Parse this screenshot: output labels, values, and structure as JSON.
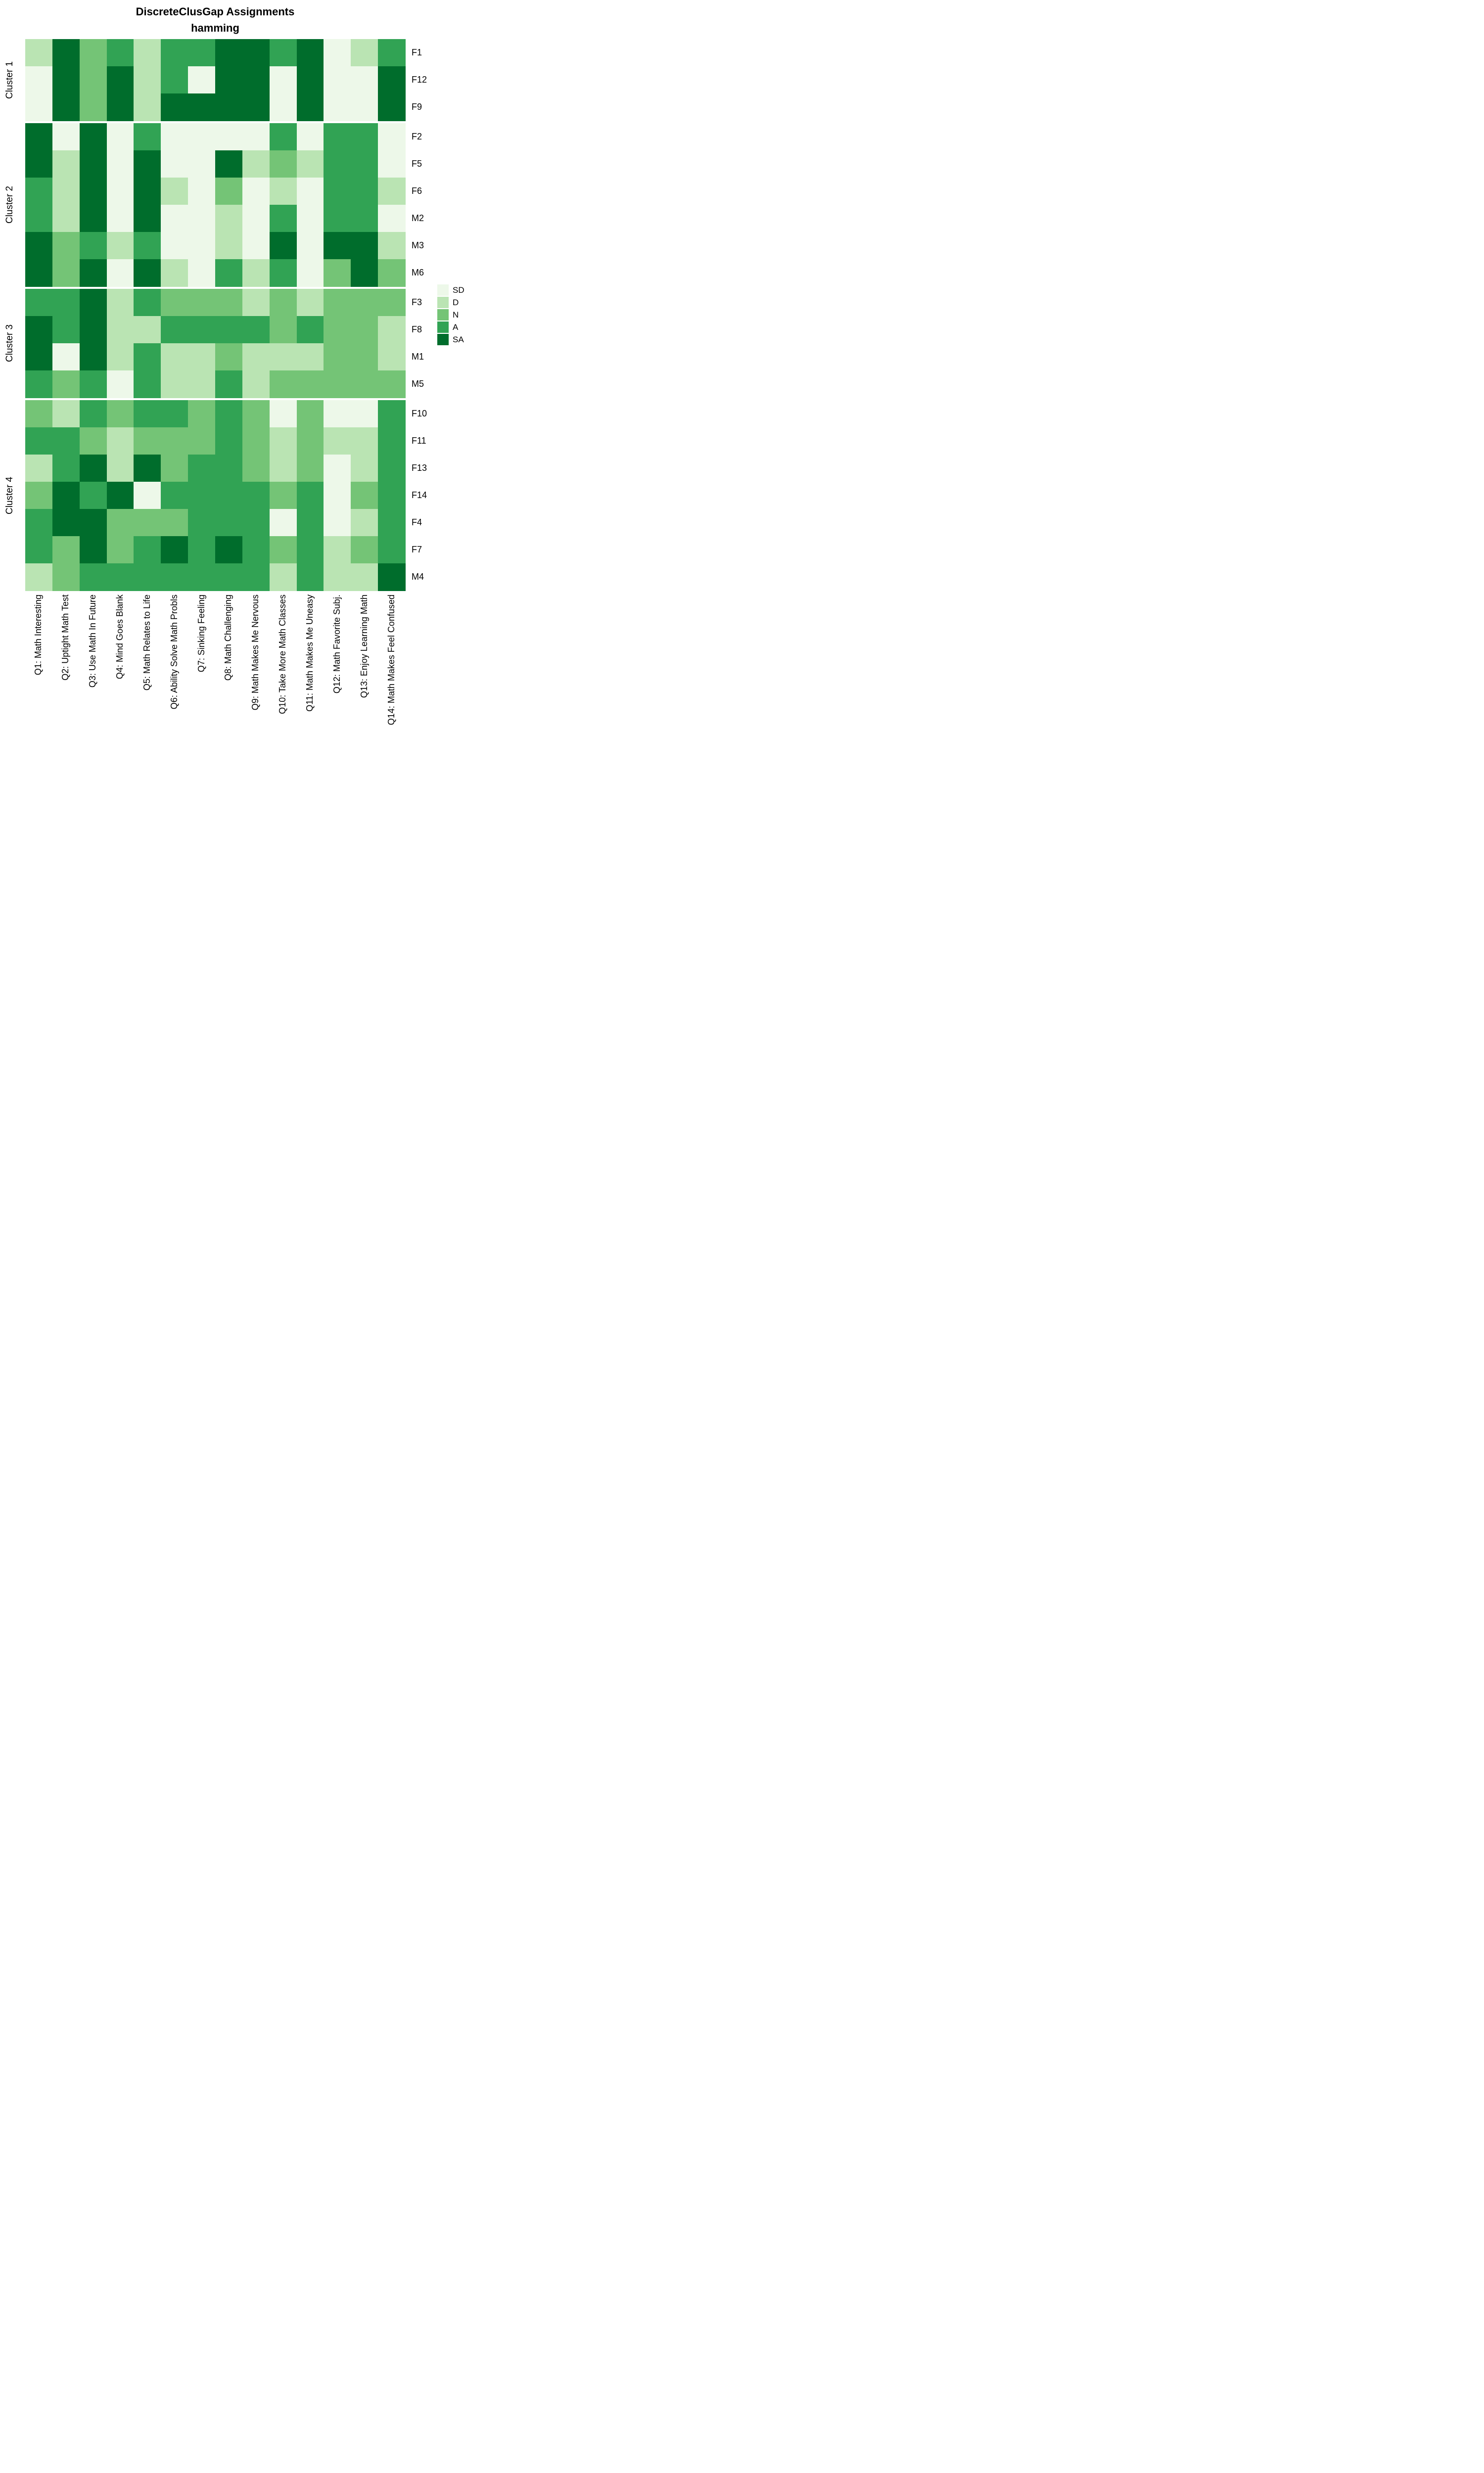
{
  "title": "DiscreteClusGap Assignments",
  "subtitle": "hamming",
  "chart_data": {
    "type": "heatmap",
    "background": "#ffffff",
    "columns": [
      "Q1: Math Interesting",
      "Q2: Uptight Math Test",
      "Q3: Use Math In Future",
      "Q4: Mind Goes Blank",
      "Q5: Math Relates to Life",
      "Q6: Ability Solve Math Probls",
      "Q7: Sinking Feeling",
      "Q8: Math Challenging",
      "Q9: Math Makes Me Nervous",
      "Q10: Take More Math Classes",
      "Q11: Math Makes Me Uneasy",
      "Q12: Math Favorite Subj.",
      "Q13: Enjoy Learning Math",
      "Q14: Math Makes Feel Confused"
    ],
    "legend": {
      "position": "right",
      "entries": [
        {
          "label": "SD",
          "color": "#EDF8E9"
        },
        {
          "label": "D",
          "color": "#BAE4B3"
        },
        {
          "label": "N",
          "color": "#74C476"
        },
        {
          "label": "A",
          "color": "#31A354"
        },
        {
          "label": "SA",
          "color": "#006D2C"
        }
      ]
    },
    "clusters": [
      {
        "name": "Cluster 1",
        "rows": [
          {
            "id": "F1",
            "values": [
              "D",
              "SA",
              "N",
              "A",
              "D",
              "A",
              "A",
              "SA",
              "SA",
              "A",
              "SA",
              "SD",
              "D",
              "A"
            ]
          },
          {
            "id": "F12",
            "values": [
              "SD",
              "SA",
              "N",
              "SA",
              "D",
              "A",
              "SD",
              "SA",
              "SA",
              "SD",
              "SA",
              "SD",
              "SD",
              "SA"
            ]
          },
          {
            "id": "F9",
            "values": [
              "SD",
              "SA",
              "N",
              "SA",
              "D",
              "SA",
              "SA",
              "SA",
              "SA",
              "SD",
              "SA",
              "SD",
              "SD",
              "SA"
            ]
          }
        ]
      },
      {
        "name": "Cluster 2",
        "rows": [
          {
            "id": "F2",
            "values": [
              "SA",
              "SD",
              "SA",
              "SD",
              "A",
              "SD",
              "SD",
              "SD",
              "SD",
              "A",
              "SD",
              "A",
              "A",
              "SD"
            ]
          },
          {
            "id": "F5",
            "values": [
              "SA",
              "D",
              "SA",
              "SD",
              "SA",
              "SD",
              "SD",
              "SA",
              "D",
              "N",
              "D",
              "A",
              "A",
              "SD"
            ]
          },
          {
            "id": "F6",
            "values": [
              "A",
              "D",
              "SA",
              "SD",
              "SA",
              "D",
              "SD",
              "N",
              "SD",
              "D",
              "SD",
              "A",
              "A",
              "D"
            ]
          },
          {
            "id": "M2",
            "values": [
              "A",
              "D",
              "SA",
              "SD",
              "SA",
              "SD",
              "SD",
              "D",
              "SD",
              "A",
              "SD",
              "A",
              "A",
              "SD"
            ]
          },
          {
            "id": "M3",
            "values": [
              "SA",
              "N",
              "A",
              "D",
              "A",
              "SD",
              "SD",
              "D",
              "SD",
              "SA",
              "SD",
              "SA",
              "SA",
              "D"
            ]
          },
          {
            "id": "M6",
            "values": [
              "SA",
              "N",
              "SA",
              "SD",
              "SA",
              "D",
              "SD",
              "A",
              "D",
              "A",
              "SD",
              "N",
              "SA",
              "N"
            ]
          }
        ]
      },
      {
        "name": "Cluster 3",
        "rows": [
          {
            "id": "F3",
            "values": [
              "A",
              "A",
              "SA",
              "D",
              "A",
              "N",
              "N",
              "N",
              "D",
              "N",
              "D",
              "N",
              "N",
              "N"
            ]
          },
          {
            "id": "F8",
            "values": [
              "SA",
              "A",
              "SA",
              "D",
              "D",
              "A",
              "A",
              "A",
              "A",
              "N",
              "A",
              "N",
              "N",
              "D"
            ]
          },
          {
            "id": "M1",
            "values": [
              "SA",
              "SD",
              "SA",
              "D",
              "A",
              "D",
              "D",
              "N",
              "D",
              "D",
              "D",
              "N",
              "N",
              "D"
            ]
          },
          {
            "id": "M5",
            "values": [
              "A",
              "N",
              "A",
              "SD",
              "A",
              "D",
              "D",
              "A",
              "D",
              "N",
              "N",
              "N",
              "N",
              "N"
            ]
          }
        ]
      },
      {
        "name": "Cluster 4",
        "rows": [
          {
            "id": "F10",
            "values": [
              "N",
              "D",
              "A",
              "N",
              "A",
              "A",
              "N",
              "A",
              "N",
              "SD",
              "N",
              "SD",
              "SD",
              "A"
            ]
          },
          {
            "id": "F11",
            "values": [
              "A",
              "A",
              "N",
              "D",
              "N",
              "N",
              "N",
              "A",
              "N",
              "D",
              "N",
              "D",
              "D",
              "A"
            ]
          },
          {
            "id": "F13",
            "values": [
              "D",
              "A",
              "SA",
              "D",
              "SA",
              "N",
              "A",
              "A",
              "N",
              "D",
              "N",
              "SD",
              "D",
              "A"
            ]
          },
          {
            "id": "F14",
            "values": [
              "N",
              "SA",
              "A",
              "SA",
              "SD",
              "A",
              "A",
              "A",
              "A",
              "N",
              "A",
              "SD",
              "N",
              "A"
            ]
          },
          {
            "id": "F4",
            "values": [
              "A",
              "SA",
              "SA",
              "N",
              "N",
              "N",
              "A",
              "A",
              "A",
              "SD",
              "A",
              "SD",
              "D",
              "A"
            ]
          },
          {
            "id": "F7",
            "values": [
              "A",
              "N",
              "SA",
              "N",
              "A",
              "SA",
              "A",
              "SA",
              "A",
              "N",
              "A",
              "D",
              "N",
              "A"
            ]
          },
          {
            "id": "M4",
            "values": [
              "D",
              "N",
              "A",
              "A",
              "A",
              "A",
              "A",
              "A",
              "A",
              "D",
              "A",
              "D",
              "D",
              "SA"
            ]
          }
        ]
      }
    ]
  }
}
